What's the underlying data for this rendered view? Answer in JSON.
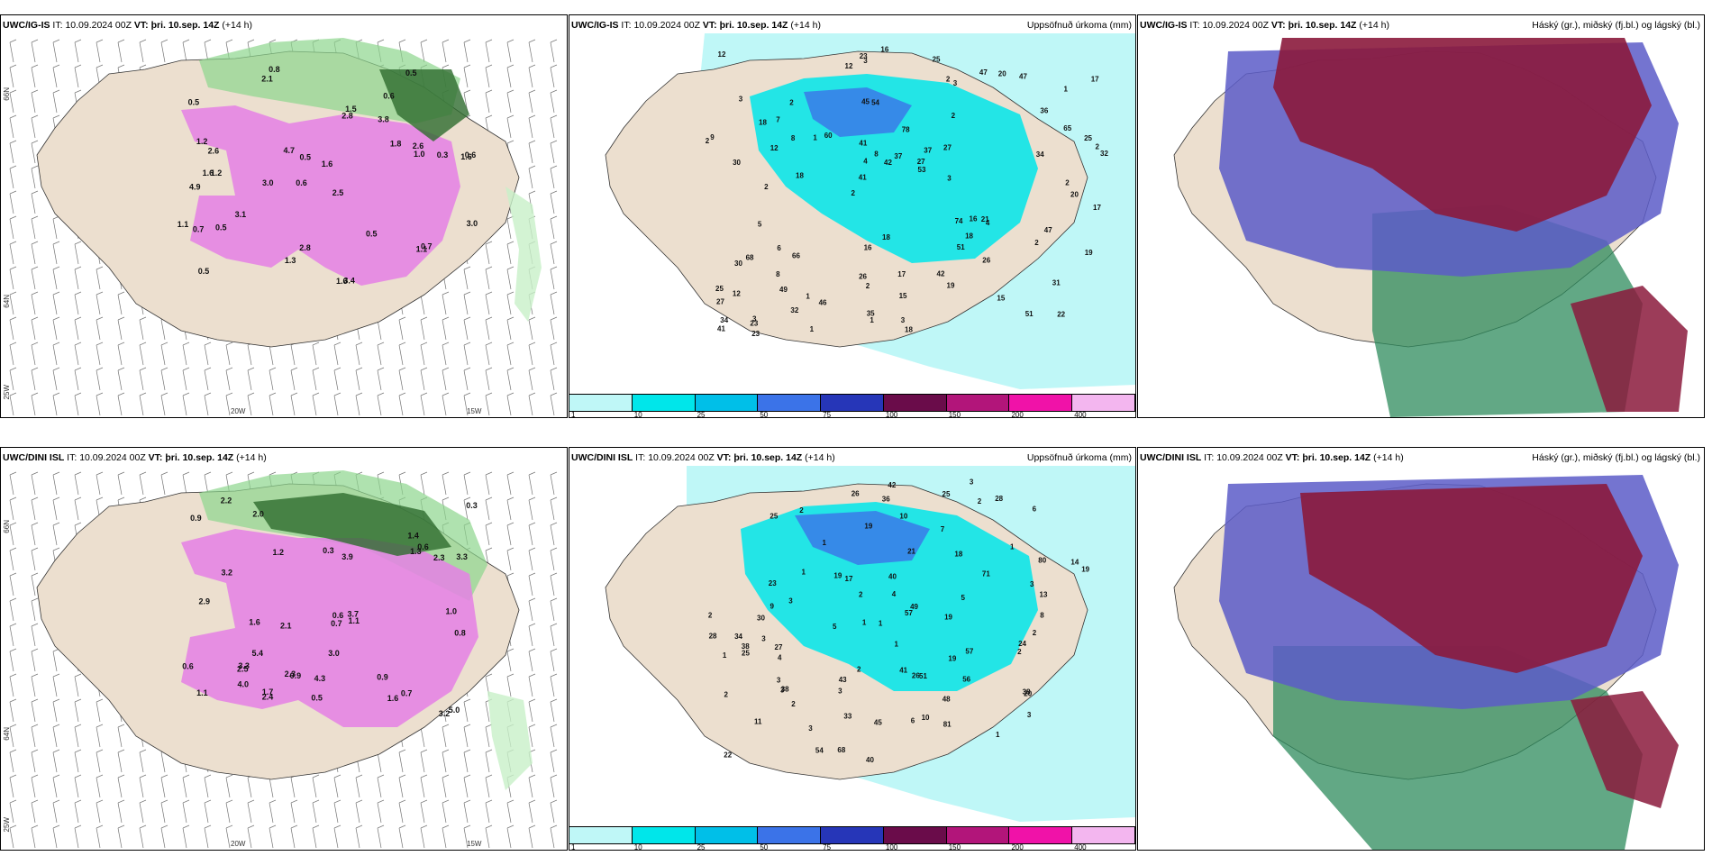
{
  "header_common": {
    "it_label": "IT:",
    "it_value": "10.09.2024 00Z",
    "vt_label": "VT:",
    "vt_value": "þri. 10.sep. 14Z",
    "lead": "(+14 h)"
  },
  "rows": [
    {
      "model": "UWC/IG-IS",
      "precip_title": "Uppsöfnuð úrkoma (mm)",
      "cloud_title": "Háský (gr.), miðský (fj.bl.) og lágský (bl.)",
      "precip_values": [
        "22",
        "30",
        "1",
        "2",
        "2",
        "3",
        "45",
        "78",
        "68",
        "60",
        "27",
        "49",
        "54",
        "37",
        "4",
        "3",
        "3",
        "32",
        "74",
        "65",
        "41",
        "26",
        "4",
        "2",
        "47",
        "66",
        "51",
        "31",
        "21",
        "18",
        "1",
        "12",
        "51",
        "32",
        "25",
        "27",
        "34",
        "2",
        "53",
        "30",
        "36",
        "17",
        "18",
        "19",
        "8",
        "23",
        "41",
        "17",
        "47",
        "16",
        "18",
        "9",
        "7",
        "20",
        "23",
        "25",
        "12",
        "8",
        "19",
        "16",
        "46",
        "16",
        "8",
        "25",
        "12",
        "18",
        "17",
        "41",
        "15",
        "37",
        "12",
        "3",
        "47",
        "35",
        "34",
        "18",
        "15",
        "3",
        "42",
        "23",
        "20",
        "27",
        "26",
        "42",
        "2",
        "2",
        "1",
        "2",
        "3",
        "2",
        "1",
        "2",
        "2",
        "5",
        "6",
        "1"
      ],
      "pcp_values": [
        "0.8",
        "0.6",
        "1.6",
        "0.6",
        "2.5",
        "1.2",
        "0.5",
        "3.8",
        "4.9",
        "2.8",
        "1.6",
        "0.5",
        "2.1",
        "3.0",
        "1.6",
        "3.4",
        "2.8",
        "0.5",
        "1.8",
        "3.1",
        "2.6",
        "1.6",
        "0.6",
        "0.3",
        "1.1",
        "1.2",
        "0.5",
        "1.0",
        "0.7",
        "0.7",
        "1.1",
        "1.5",
        "0.5",
        "4.7",
        "0.5",
        "3.0",
        "2.6",
        "1.3"
      ]
    },
    {
      "model": "UWC/DINI ISL",
      "precip_title": "Uppsöfnuð úrkoma (mm)",
      "cloud_title": "Háský (gr.), miðský (fj.bl.) og lágský (bl.)",
      "precip_values": [
        "11",
        "28",
        "2",
        "1",
        "26",
        "3",
        "4",
        "38",
        "80",
        "71",
        "34",
        "42",
        "56",
        "57",
        "40",
        "26",
        "3",
        "2",
        "3",
        "68",
        "81",
        "36",
        "19",
        "49",
        "4",
        "33",
        "38",
        "25",
        "21",
        "57",
        "23",
        "2",
        "10",
        "41",
        "20",
        "25",
        "14",
        "19",
        "18",
        "24",
        "19",
        "10",
        "45",
        "27",
        "28",
        "9",
        "19",
        "6",
        "43",
        "48",
        "17",
        "54",
        "40",
        "13",
        "5",
        "51",
        "19",
        "38",
        "25",
        "30",
        "22",
        "3",
        "7",
        "1",
        "2",
        "2",
        "3",
        "5",
        "2",
        "1",
        "2",
        "3",
        "2",
        "3",
        "2",
        "1",
        "1",
        "1",
        "3",
        "6",
        "8",
        "1",
        "3",
        "1"
      ],
      "pcp_values": [
        "1.1",
        "0.6",
        "0.8",
        "0.5",
        "1.3",
        "2.5",
        "3.3",
        "0.3",
        "4.3",
        "2.3",
        "1.6",
        "0.9",
        "3.9",
        "1.2",
        "1.7",
        "2.1",
        "3.2",
        "0.7",
        "1.1",
        "0.6",
        "2.9",
        "3.7",
        "1.4",
        "2.4",
        "0.9",
        "1.6",
        "0.3",
        "3.3",
        "2.0",
        "0.6",
        "3.0",
        "2.2",
        "4.0",
        "5.0",
        "5.4",
        "0.9",
        "0.7",
        "1.0",
        "3.2",
        "2.3"
      ]
    }
  ],
  "colorbar": {
    "ticks": [
      "1",
      "10",
      "25",
      "50",
      "75",
      "100",
      "150",
      "200",
      "400"
    ],
    "colors": [
      "#bff7f7",
      "#00e6ea",
      "#00bfe8",
      "#3b73e8",
      "#2636b8",
      "#6a0c4a",
      "#b2157a",
      "#f012a8",
      "#f3b6ef"
    ]
  },
  "axes": {
    "lat_upper": "66N",
    "lat_lower": "64N",
    "lon_left": "20W",
    "lon_right": "15W",
    "lon_edge": "25W"
  },
  "colors": {
    "land": "#ecdfcf",
    "sea": "#ffffff",
    "precip_light": "#bff7f7",
    "pcp_pink": "#e580e5",
    "pcp_green": "#8dd68d"
  }
}
